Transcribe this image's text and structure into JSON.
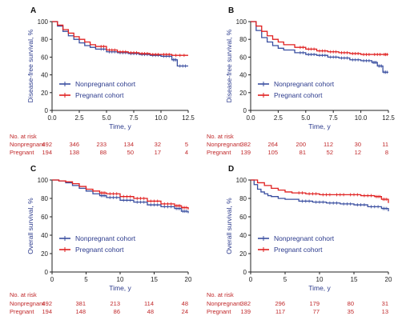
{
  "colors": {
    "nonpregnant": "#3a4fa0",
    "pregnant": "#e02020",
    "risk_text": "#c0282a"
  },
  "chart_data": [
    {
      "panel": "A",
      "type": "line",
      "ylabel": "Disease-free survival, %",
      "xlabel": "Time, y",
      "xlim": [
        0,
        12.5
      ],
      "ylim": [
        0,
        100
      ],
      "xticks": [
        "0.0",
        "2.5",
        "5.0",
        "7.5",
        "10.0",
        "12.5"
      ],
      "yticks": [
        "0",
        "20",
        "40",
        "60",
        "80",
        "100"
      ],
      "legend_position": "bottom-left",
      "series": [
        {
          "name": "Nonpregnant cohort",
          "color": "#3a4fa0",
          "x": [
            0,
            0.5,
            1,
            1.5,
            2,
            2.5,
            3,
            3.5,
            4,
            5,
            6,
            7,
            8,
            9,
            10,
            11,
            11.5,
            12.5
          ],
          "y": [
            100,
            95,
            89,
            84,
            80,
            76,
            73,
            71,
            69,
            66,
            65,
            64,
            63,
            62,
            61,
            57,
            50,
            50
          ]
        },
        {
          "name": "Pregnant cohort",
          "color": "#e02020",
          "x": [
            0,
            0.5,
            1,
            1.5,
            2,
            2.5,
            3,
            3.5,
            4,
            5,
            6,
            7,
            8,
            9,
            10,
            11,
            12.5
          ],
          "y": [
            100,
            96,
            91,
            87,
            83,
            80,
            77,
            74,
            72,
            68,
            66,
            65,
            64,
            63,
            63,
            62,
            62
          ]
        }
      ],
      "risk_table": {
        "header": "No. at risk",
        "rows": [
          {
            "label": "Nonpregnant",
            "values": [
              "492",
              "346",
              "233",
              "134",
              "32",
              "5"
            ]
          },
          {
            "label": "Pregnant",
            "values": [
              "194",
              "138",
              "88",
              "50",
              "17",
              "4"
            ]
          }
        ]
      }
    },
    {
      "panel": "B",
      "type": "line",
      "ylabel": "Disease-free survival, %",
      "xlabel": "Time, y",
      "xlim": [
        0,
        12.5
      ],
      "ylim": [
        0,
        100
      ],
      "xticks": [
        "0.0",
        "2.5",
        "5.0",
        "7.5",
        "10.0",
        "12.5"
      ],
      "yticks": [
        "0",
        "20",
        "40",
        "60",
        "80",
        "100"
      ],
      "legend_position": "bottom-left",
      "series": [
        {
          "name": "Nonpregnant cohort",
          "color": "#3a4fa0",
          "x": [
            0,
            0.5,
            1,
            1.5,
            2,
            2.5,
            3,
            4,
            5,
            6,
            7,
            8,
            9,
            10,
            11,
            11.5,
            12,
            12.5
          ],
          "y": [
            100,
            90,
            82,
            77,
            73,
            70,
            68,
            65,
            63,
            62,
            60,
            59,
            57,
            56,
            54,
            50,
            43,
            43
          ]
        },
        {
          "name": "Pregnant cohort",
          "color": "#e02020",
          "x": [
            0,
            0.5,
            1,
            1.5,
            2,
            2.5,
            3,
            4,
            5,
            6,
            7,
            8,
            9,
            10,
            11,
            12,
            12.5
          ],
          "y": [
            100,
            95,
            89,
            84,
            80,
            77,
            74,
            71,
            69,
            67,
            66,
            65,
            64,
            63,
            63,
            63,
            63
          ]
        }
      ],
      "risk_table": {
        "header": "No. at risk",
        "rows": [
          {
            "label": "Nonpregnant",
            "values": [
              "382",
              "264",
              "200",
              "112",
              "30",
              "11"
            ]
          },
          {
            "label": "Pregnant",
            "values": [
              "139",
              "105",
              "81",
              "52",
              "12",
              "8"
            ]
          }
        ]
      }
    },
    {
      "panel": "C",
      "type": "line",
      "ylabel": "Overall survival, %",
      "xlabel": "Time, y",
      "xlim": [
        0,
        20
      ],
      "ylim": [
        0,
        100
      ],
      "xticks": [
        "0",
        "5",
        "10",
        "15",
        "20"
      ],
      "yticks": [
        "0",
        "20",
        "40",
        "60",
        "80",
        "100"
      ],
      "legend_position": "bottom-left",
      "series": [
        {
          "name": "Nonpregnant cohort",
          "color": "#3a4fa0",
          "x": [
            0,
            1,
            2,
            3,
            4,
            5,
            6,
            7,
            8,
            10,
            12,
            14,
            16,
            18,
            19,
            20
          ],
          "y": [
            100,
            99,
            97,
            94,
            91,
            88,
            85,
            83,
            81,
            78,
            76,
            73,
            71,
            69,
            66,
            64
          ]
        },
        {
          "name": "Pregnant cohort",
          "color": "#e02020",
          "x": [
            0,
            1,
            2,
            3,
            4,
            5,
            6,
            7,
            8,
            10,
            12,
            14,
            16,
            18,
            19,
            20
          ],
          "y": [
            100,
            99,
            98,
            96,
            93,
            90,
            88,
            86,
            85,
            82,
            80,
            77,
            74,
            72,
            70,
            68
          ]
        }
      ],
      "risk_table": {
        "header": "No. at risk",
        "rows": [
          {
            "label": "Nonpregnant",
            "values": [
              "492",
              "381",
              "213",
              "114",
              "48"
            ]
          },
          {
            "label": "Pregnant",
            "values": [
              "194",
              "148",
              "86",
              "48",
              "24"
            ]
          }
        ]
      }
    },
    {
      "panel": "D",
      "type": "line",
      "ylabel": "Overall survival, %",
      "xlabel": "Time, y",
      "xlim": [
        0,
        20
      ],
      "ylim": [
        0,
        100
      ],
      "xticks": [
        "0",
        "5",
        "10",
        "15",
        "20"
      ],
      "yticks": [
        "0",
        "20",
        "40",
        "60",
        "80",
        "100"
      ],
      "legend_position": "bottom-left",
      "series": [
        {
          "name": "Nonpregnant cohort",
          "color": "#3a4fa0",
          "x": [
            0,
            0.5,
            1,
            1.5,
            2,
            2.5,
            3,
            4,
            5,
            7,
            9,
            11,
            13,
            15,
            17,
            19,
            20
          ],
          "y": [
            100,
            95,
            90,
            87,
            85,
            83,
            82,
            80,
            79,
            77,
            76,
            75,
            74,
            73,
            71,
            69,
            66
          ]
        },
        {
          "name": "Pregnant cohort",
          "color": "#e02020",
          "x": [
            0,
            1,
            2,
            3,
            4,
            5,
            6,
            8,
            10,
            12,
            14,
            16,
            18,
            19,
            20
          ],
          "y": [
            100,
            97,
            94,
            91,
            89,
            87,
            86,
            85,
            84,
            84,
            84,
            83,
            82,
            79,
            75
          ]
        }
      ],
      "risk_table": {
        "header": "No. at risk",
        "rows": [
          {
            "label": "Nonpregnant",
            "values": [
              "382",
              "296",
              "179",
              "80",
              "31"
            ]
          },
          {
            "label": "Pregnant",
            "values": [
              "139",
              "117",
              "77",
              "35",
              "13"
            ]
          }
        ]
      }
    }
  ]
}
